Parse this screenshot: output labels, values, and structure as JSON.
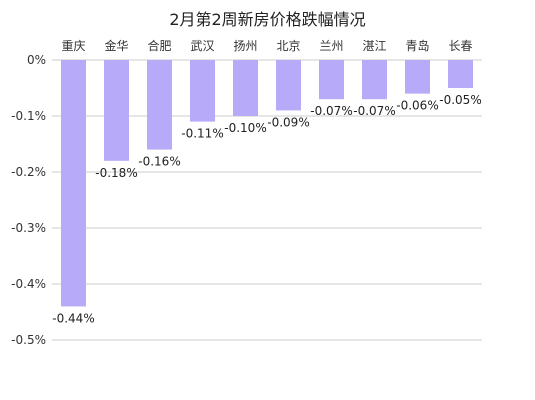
{
  "chart_data": {
    "type": "bar",
    "title": "2月第2周新房价格跌幅情况",
    "categories": [
      "重庆",
      "金华",
      "合肥",
      "武汉",
      "扬州",
      "北京",
      "兰州",
      "湛江",
      "青岛",
      "长春"
    ],
    "values": [
      -0.44,
      -0.18,
      -0.16,
      -0.11,
      -0.1,
      -0.09,
      -0.07,
      -0.07,
      -0.06,
      -0.05
    ],
    "value_labels": [
      "-0.44%",
      "-0.18%",
      "-0.16%",
      "-0.11%",
      "-0.10%",
      "-0.09%",
      "-0.07%",
      "-0.07%",
      "-0.06%",
      "-0.05%"
    ],
    "y_ticks": [
      0,
      -0.1,
      -0.2,
      -0.3,
      -0.4,
      -0.5
    ],
    "y_tick_labels": [
      "0%",
      "-0.1%",
      "-0.2%",
      "-0.3%",
      "-0.4%",
      "-0.5%"
    ],
    "ylim": [
      -0.5,
      0
    ],
    "xlabel": "",
    "ylabel": "",
    "category_axis_position": "top",
    "grid": true,
    "legend": false,
    "bar_color": "#b6aaf9",
    "grid_color": "#cccccc"
  }
}
